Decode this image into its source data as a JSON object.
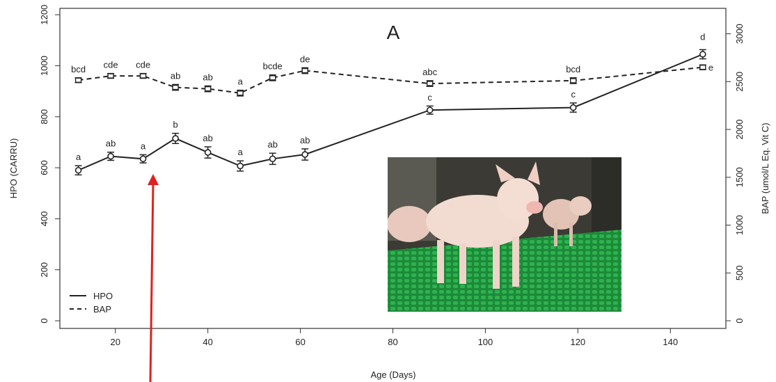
{
  "chart_data": {
    "type": "line",
    "panel_label": "A",
    "xlabel": "Age (Days)",
    "ylabel_left": "HPO (CARRU)",
    "ylabel_right": "BAP (umol/L Eq. Vit C)",
    "xlim": [
      8,
      152
    ],
    "xticks": [
      20,
      40,
      60,
      80,
      100,
      120,
      140
    ],
    "ylim_left": [
      -30,
      1225
    ],
    "yticks_left": [
      0,
      200,
      400,
      600,
      800,
      1000,
      1200
    ],
    "ylim_right": [
      -80,
      3266
    ],
    "yticks_right": [
      0,
      500,
      1000,
      1500,
      2000,
      2500,
      3000
    ],
    "legend": {
      "position": "bottom-left",
      "entries": [
        {
          "label": "HPO",
          "style": "solid"
        },
        {
          "label": "BAP",
          "style": "dashed"
        }
      ]
    },
    "series": [
      {
        "name": "HPO",
        "axis": "left",
        "style": "solid",
        "x": [
          12,
          19,
          26,
          33,
          40,
          47,
          54,
          61,
          88,
          119,
          147
        ],
        "y": [
          590,
          645,
          635,
          715,
          660,
          607,
          635,
          652,
          826,
          836,
          1045
        ],
        "err": [
          18,
          16,
          16,
          20,
          22,
          20,
          22,
          22,
          16,
          18,
          18
        ],
        "labels": [
          "a",
          "ab",
          "a",
          "b",
          "ab",
          "a",
          "ab",
          "ab",
          "c",
          "c",
          "d"
        ]
      },
      {
        "name": "BAP",
        "axis": "right",
        "style": "dashed",
        "x": [
          12,
          19,
          26,
          33,
          40,
          47,
          54,
          61,
          88,
          119,
          147
        ],
        "y": [
          2515,
          2560,
          2560,
          2440,
          2425,
          2380,
          2540,
          2615,
          2480,
          2510,
          2650
        ],
        "err": [
          25,
          25,
          25,
          30,
          30,
          30,
          30,
          30,
          30,
          30,
          25
        ],
        "labels": [
          "bcd",
          "cde",
          "cde",
          "ab",
          "ab",
          "a",
          "bcde",
          "de",
          "abc",
          "bcd",
          "e"
        ]
      }
    ]
  },
  "photo": {
    "subject": "pigs-on-green-slatted-floor"
  },
  "annotation": {
    "arrow_color": "#e02020"
  }
}
